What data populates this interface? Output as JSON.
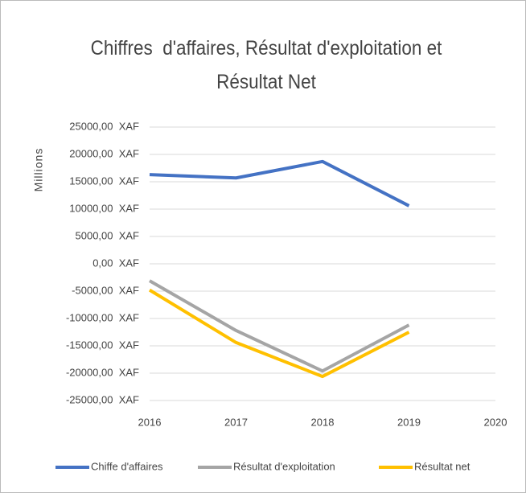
{
  "chart_data": {
    "type": "line",
    "title": "Chiffres  d'affaires, Résultat d'exploitation et Résultat Net",
    "y_label": "Millions",
    "x": [
      2016,
      2017,
      2018,
      2019
    ],
    "xlim": [
      2016,
      2020
    ],
    "xticks": [
      2016,
      2017,
      2018,
      2019,
      2020
    ],
    "ylim": [
      -25000,
      25000
    ],
    "yticks": [
      {
        "value": -25000,
        "label": "-25000,00  XAF"
      },
      {
        "value": -20000,
        "label": "-20000,00  XAF"
      },
      {
        "value": -15000,
        "label": "-15000,00  XAF"
      },
      {
        "value": -10000,
        "label": "-10000,00  XAF"
      },
      {
        "value": -5000,
        "label": "-5000,00  XAF"
      },
      {
        "value": 0,
        "label": "0,00  XAF"
      },
      {
        "value": 5000,
        "label": "5000,00  XAF"
      },
      {
        "value": 10000,
        "label": "10000,00  XAF"
      },
      {
        "value": 15000,
        "label": "15000,00  XAF"
      },
      {
        "value": 20000,
        "label": "20000,00  XAF"
      },
      {
        "value": 25000,
        "label": "25000,00  XAF"
      }
    ],
    "grid": true,
    "legend": "bottom",
    "series": [
      {
        "name": "Chiffe d'affaires",
        "color": "#4472c4",
        "values": [
          16300,
          15700,
          18700,
          10600
        ]
      },
      {
        "name": "Résultat d'exploitation",
        "color": "#a5a5a5",
        "values": [
          -3100,
          -12200,
          -19600,
          -11200
        ]
      },
      {
        "name": "Résultat net",
        "color": "#ffc000",
        "values": [
          -4800,
          -14400,
          -20600,
          -12500
        ]
      }
    ]
  }
}
